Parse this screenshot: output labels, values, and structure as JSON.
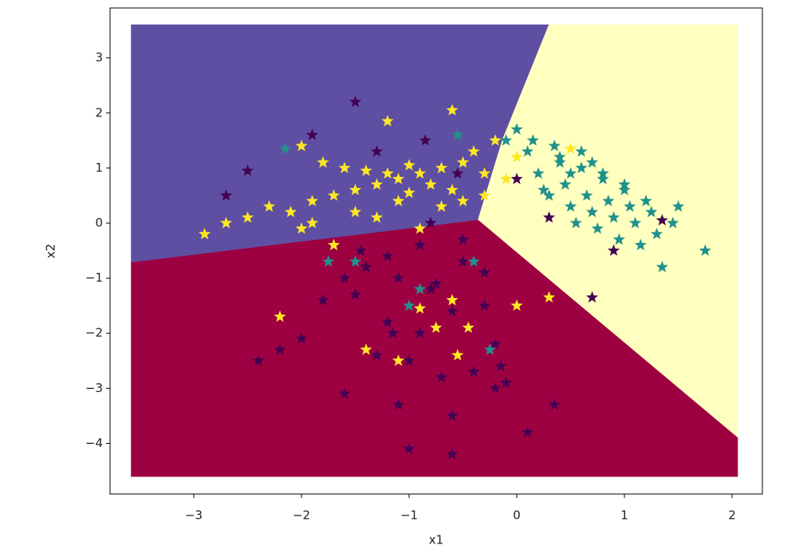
{
  "chart_data": {
    "type": "scatter",
    "x_label": "x1",
    "y_label": "x2",
    "xlim": [
      -3.778,
      2.281
    ],
    "ylim": [
      -4.92,
      3.907
    ],
    "xticks": [
      {
        "value": -3,
        "label": "−3"
      },
      {
        "value": -2,
        "label": "−2"
      },
      {
        "value": -1,
        "label": "−1"
      },
      0,
      1,
      2
    ],
    "yticks": [
      {
        "value": -4,
        "label": "−4"
      },
      {
        "value": -3,
        "label": "−3"
      },
      {
        "value": -2,
        "label": "−2"
      },
      {
        "value": -1,
        "label": "−1"
      },
      0,
      1,
      2,
      3
    ],
    "regions": [
      {
        "color": "#5e4fa2",
        "points": [
          [
            -3.58,
            3.6
          ],
          [
            0.3,
            3.6
          ],
          [
            -0.13,
            1.52
          ],
          [
            -0.36,
            0.05
          ],
          [
            -3.58,
            -0.72
          ]
        ]
      },
      {
        "color": "#ffffbf",
        "points": [
          [
            0.3,
            3.6
          ],
          [
            2.05,
            3.6
          ],
          [
            2.05,
            -3.9
          ],
          [
            -0.36,
            0.05
          ],
          [
            -0.13,
            1.52
          ]
        ]
      },
      {
        "color": "#9e0142",
        "points": [
          [
            -3.58,
            -0.72
          ],
          [
            -0.36,
            0.05
          ],
          [
            2.05,
            -3.9
          ],
          [
            2.05,
            -4.6
          ],
          [
            -3.58,
            -4.6
          ]
        ]
      }
    ],
    "series": [
      {
        "color": "#440154",
        "x": [
          -1.4,
          -1.1,
          -0.8,
          -0.5,
          -0.3,
          -1.2,
          -0.9,
          -0.6,
          -1.5,
          -0.2,
          -1.0,
          -0.7,
          -1.3,
          -0.4,
          -0.1,
          -1.8,
          -2.0,
          -2.2,
          -2.4,
          -1.6,
          -0.9,
          -0.5,
          -1.2,
          -0.8,
          -0.3,
          -1.6,
          -1.1,
          -0.6,
          -0.2,
          0.1,
          -1.0,
          -0.6,
          0.7,
          0.35,
          -0.15,
          -1.5,
          -2.7,
          -2.5,
          -1.9,
          -1.3,
          -0.85,
          -0.55,
          0.0,
          0.3,
          1.35,
          0.9,
          -1.45,
          -1.15,
          -0.75,
          -0.45
        ],
        "values": [
          -0.8,
          -1.0,
          -1.2,
          -0.7,
          -1.5,
          -1.8,
          -2.0,
          -1.6,
          -1.3,
          -2.2,
          -2.5,
          -2.8,
          -2.4,
          -2.7,
          -2.9,
          -1.4,
          -2.1,
          -2.3,
          -2.5,
          -1.0,
          -0.4,
          -0.3,
          -0.6,
          0.0,
          -0.9,
          -3.1,
          -3.3,
          -3.5,
          -3.0,
          -3.8,
          -4.1,
          -4.2,
          -1.35,
          -3.3,
          -2.6,
          2.2,
          0.5,
          0.95,
          1.6,
          1.3,
          1.5,
          0.9,
          0.8,
          0.1,
          0.05,
          -0.5,
          -0.5,
          -2.0,
          -1.1,
          -1.9
        ]
      },
      {
        "color": "#21918c",
        "x": [
          0.2,
          0.4,
          0.6,
          0.8,
          1.0,
          1.2,
          0.3,
          0.5,
          0.7,
          0.9,
          1.1,
          1.3,
          0.1,
          0.45,
          0.65,
          0.85,
          1.05,
          1.25,
          1.45,
          1.75,
          0.0,
          -0.1,
          0.55,
          0.75,
          0.95,
          1.15,
          1.35,
          0.25,
          0.35,
          0.6,
          0.15,
          0.5,
          0.8,
          1.0,
          0.4,
          -0.4,
          -0.9,
          -1.5,
          -1.0,
          -0.25,
          -1.75,
          0.7,
          1.5,
          -2.15,
          -0.55
        ],
        "values": [
          0.9,
          1.1,
          1.0,
          0.8,
          0.6,
          0.4,
          0.5,
          0.3,
          0.2,
          0.1,
          0.0,
          -0.2,
          1.3,
          0.7,
          0.5,
          0.4,
          0.3,
          0.2,
          0.0,
          -0.5,
          1.7,
          1.5,
          0.0,
          -0.1,
          -0.3,
          -0.4,
          -0.8,
          0.6,
          1.4,
          1.3,
          1.5,
          0.9,
          0.9,
          0.7,
          1.2,
          -0.7,
          -1.2,
          -0.7,
          -1.5,
          -2.3,
          -0.7,
          1.1,
          0.3,
          1.35,
          1.6
        ]
      },
      {
        "color": "#fde725",
        "x": [
          -2.9,
          -2.7,
          -2.5,
          -2.3,
          -2.1,
          -1.9,
          -1.7,
          -1.5,
          -1.3,
          -1.1,
          -0.9,
          -0.7,
          -0.5,
          -0.3,
          -0.1,
          -2.0,
          -1.8,
          -1.6,
          -1.4,
          -1.2,
          -1.0,
          -0.8,
          -0.6,
          -0.4,
          -0.2,
          0.0,
          -1.9,
          -1.5,
          -1.1,
          -0.7,
          -0.3,
          -1.7,
          -1.3,
          -0.9,
          -0.5,
          -2.2,
          -1.0,
          -0.6,
          -1.2,
          0.3,
          -0.75,
          -2.0,
          -1.4,
          -1.1,
          -0.45,
          -0.6,
          -0.9,
          0.0,
          -0.55,
          0.5
        ],
        "values": [
          -0.2,
          0.0,
          0.1,
          0.3,
          0.2,
          0.4,
          0.5,
          0.6,
          0.7,
          0.8,
          0.9,
          1.0,
          1.1,
          0.9,
          0.8,
          1.4,
          1.1,
          1.0,
          0.95,
          0.9,
          1.05,
          0.7,
          0.6,
          1.3,
          1.5,
          1.2,
          0.0,
          0.2,
          0.4,
          0.3,
          0.5,
          -0.4,
          0.1,
          -0.1,
          0.4,
          -1.7,
          0.55,
          2.05,
          1.85,
          -1.35,
          -1.9,
          -0.1,
          -2.3,
          -2.5,
          -1.9,
          -1.4,
          -1.55,
          -1.5,
          -2.4,
          1.35
        ]
      }
    ]
  }
}
